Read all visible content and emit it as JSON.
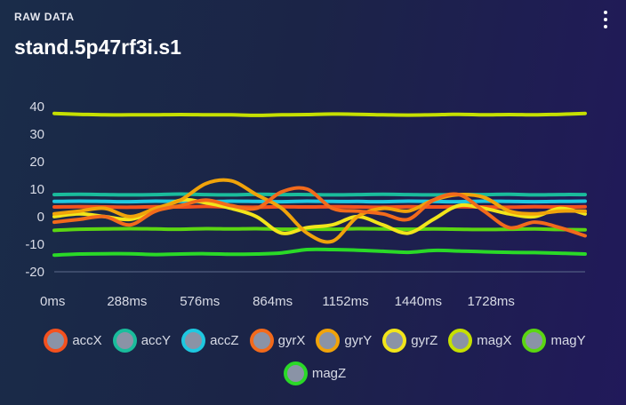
{
  "header": {
    "eyebrow": "RAW DATA",
    "title": "stand.5p47rf3i.s1",
    "menu_icon": "more-vertical-icon"
  },
  "chart_data": {
    "type": "line",
    "title": "stand.5p47rf3i.s1",
    "xlabel": "",
    "ylabel": "",
    "x_unit": "ms",
    "xlim": [
      0,
      2100
    ],
    "ylim": [
      -22,
      40
    ],
    "yticks": [
      40,
      30,
      20,
      10,
      0,
      -10,
      -20
    ],
    "xticks": [
      0,
      288,
      576,
      864,
      1152,
      1440,
      1728
    ],
    "xtick_labels": [
      "0ms",
      "288ms",
      "576ms",
      "864ms",
      "1152ms",
      "1440ms",
      "1728ms"
    ],
    "grid": false,
    "legend_position": "bottom",
    "x": [
      0,
      100,
      200,
      300,
      400,
      500,
      600,
      700,
      800,
      900,
      1000,
      1100,
      1200,
      1300,
      1400,
      1500,
      1600,
      1700,
      1800,
      1900,
      2000,
      2100
    ],
    "series": [
      {
        "name": "accX",
        "color": "#f4511e",
        "values": [
          3.5,
          3.6,
          3.5,
          3.4,
          3.6,
          3.5,
          3.7,
          3.5,
          3.4,
          3.6,
          3.5,
          3.6,
          3.5,
          3.4,
          3.6,
          3.5,
          3.6,
          3.5,
          3.4,
          3.6,
          3.5,
          3.6
        ]
      },
      {
        "name": "accY",
        "color": "#1abc9c",
        "values": [
          8,
          8.1,
          8,
          7.9,
          8,
          8.2,
          8,
          7.9,
          8.1,
          8,
          8,
          7.9,
          8,
          8.1,
          8,
          7.9,
          8,
          8,
          8.1,
          7.9,
          8,
          8
        ]
      },
      {
        "name": "accZ",
        "color": "#1ec8e0",
        "values": [
          5.5,
          5.6,
          5.5,
          5.4,
          5.6,
          5.5,
          5.4,
          5.6,
          5.5,
          5.4,
          5.6,
          5.5,
          5.5,
          5.4,
          5.6,
          5.5,
          5.4,
          5.6,
          5.5,
          5.4,
          5.5,
          5.6
        ]
      },
      {
        "name": "gyrX",
        "color": "#f26a1b",
        "values": [
          -2,
          -1,
          0,
          -3,
          2,
          4,
          6,
          4,
          3,
          9,
          10,
          3,
          2,
          1,
          -1,
          6,
          8,
          2,
          -4,
          -2,
          -4,
          -7
        ]
      },
      {
        "name": "gyrY",
        "color": "#f0a30a",
        "values": [
          1,
          2,
          3,
          0,
          3,
          6,
          12,
          13,
          8,
          3,
          -6,
          -9,
          0,
          3,
          2,
          6,
          8,
          7,
          2,
          1,
          2,
          2
        ]
      },
      {
        "name": "gyrZ",
        "color": "#f2e51a",
        "values": [
          0,
          1,
          0,
          -1,
          2,
          6,
          5,
          3,
          0,
          -6,
          -4,
          -3,
          0,
          -3,
          -6,
          -1,
          4,
          3,
          1,
          0,
          3,
          1
        ]
      },
      {
        "name": "magX",
        "color": "#c6e000",
        "values": [
          37.5,
          37.2,
          37,
          37,
          37,
          37.1,
          37,
          37,
          36.8,
          37,
          37.1,
          37.3,
          37.2,
          37,
          36.9,
          37,
          37.2,
          37,
          37.1,
          37,
          37.2,
          37.5
        ]
      },
      {
        "name": "magY",
        "color": "#5bd612",
        "values": [
          -5,
          -4.6,
          -4.5,
          -4.4,
          -4.5,
          -4.6,
          -4.4,
          -4.5,
          -4.4,
          -4.6,
          -4.5,
          -4.6,
          -4.4,
          -4.5,
          -4.6,
          -4.5,
          -4.6,
          -4.7,
          -4.6,
          -4.5,
          -4.7,
          -4.8
        ]
      },
      {
        "name": "magZ",
        "color": "#2ad927",
        "values": [
          -14,
          -13.6,
          -13.5,
          -13.5,
          -13.8,
          -13.6,
          -13.5,
          -13.7,
          -13.6,
          -13.2,
          -12,
          -12,
          -12.2,
          -12.6,
          -13,
          -12.3,
          -12.5,
          -12.8,
          -13,
          -13.1,
          -13.3,
          -13.6
        ]
      }
    ]
  }
}
